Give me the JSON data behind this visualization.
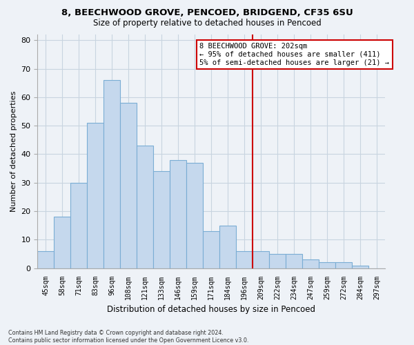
{
  "title1": "8, BEECHWOOD GROVE, PENCOED, BRIDGEND, CF35 6SU",
  "title2": "Size of property relative to detached houses in Pencoed",
  "xlabel": "Distribution of detached houses by size in Pencoed",
  "ylabel": "Number of detached properties",
  "bar_labels": [
    "45sqm",
    "58sqm",
    "71sqm",
    "83sqm",
    "96sqm",
    "108sqm",
    "121sqm",
    "133sqm",
    "146sqm",
    "159sqm",
    "171sqm",
    "184sqm",
    "196sqm",
    "209sqm",
    "222sqm",
    "234sqm",
    "247sqm",
    "259sqm",
    "272sqm",
    "284sqm",
    "297sqm"
  ],
  "bar_values": [
    6,
    18,
    30,
    51,
    66,
    58,
    43,
    34,
    38,
    37,
    13,
    15,
    6,
    6,
    5,
    5,
    3,
    2,
    2,
    1,
    0
  ],
  "bar_color": "#c5d8ed",
  "bar_edge_color": "#7aadd4",
  "grid_color": "#c8d4e0",
  "vline_x_index": 13,
  "vline_color": "#cc0000",
  "annotation_title": "8 BEECHWOOD GROVE: 202sqm",
  "annotation_line1": "← 95% of detached houses are smaller (411)",
  "annotation_line2": "5% of semi-detached houses are larger (21) →",
  "annotation_box_color": "#ffffff",
  "annotation_box_edge": "#cc0000",
  "ylim": [
    0,
    82
  ],
  "yticks": [
    0,
    10,
    20,
    30,
    40,
    50,
    60,
    70,
    80
  ],
  "footer1": "Contains HM Land Registry data © Crown copyright and database right 2024.",
  "footer2": "Contains public sector information licensed under the Open Government Licence v3.0.",
  "bg_color": "#eef2f7"
}
